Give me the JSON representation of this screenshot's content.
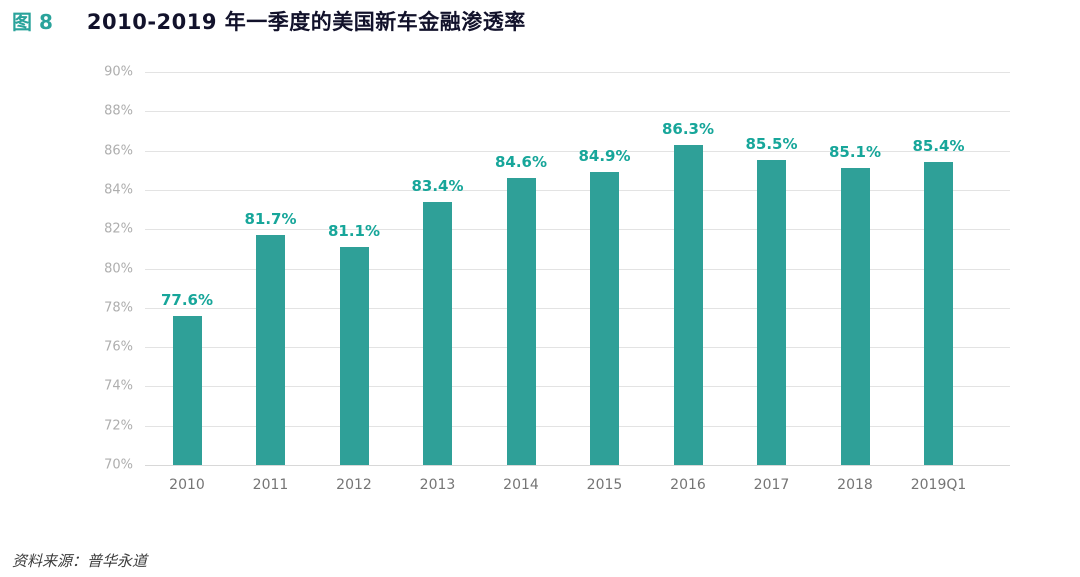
{
  "figure": {
    "tag": "图 8",
    "title": "2010-2019 年一季度的美国新车金融渗透率",
    "source": "资料来源：普华永道"
  },
  "chart_data": {
    "type": "bar",
    "title": "2010-2019 年一季度的美国新车金融渗透率",
    "categories": [
      "2010",
      "2011",
      "2012",
      "2013",
      "2014",
      "2015",
      "2016",
      "2017",
      "2018",
      "2019Q1"
    ],
    "values": [
      77.6,
      81.7,
      81.1,
      83.4,
      84.6,
      84.9,
      86.3,
      85.5,
      85.1,
      85.4
    ],
    "labels": [
      "77.6%",
      "81.7%",
      "81.1%",
      "83.4%",
      "84.6%",
      "84.9%",
      "86.3%",
      "85.5%",
      "85.1%",
      "85.4%"
    ],
    "xlabel": "",
    "ylabel": "",
    "ylim": [
      70,
      90
    ],
    "ytick_step": 2,
    "ytick_labels": [
      "70%",
      "72%",
      "74%",
      "76%",
      "78%",
      "80%",
      "82%",
      "84%",
      "86%",
      "88%",
      "90%"
    ],
    "grid": true,
    "legend": "none",
    "bar_color": "#2fa098",
    "value_label_color": "#17a69a",
    "title_color": "#12122b",
    "figure_tag_color": "#2aa39b"
  }
}
